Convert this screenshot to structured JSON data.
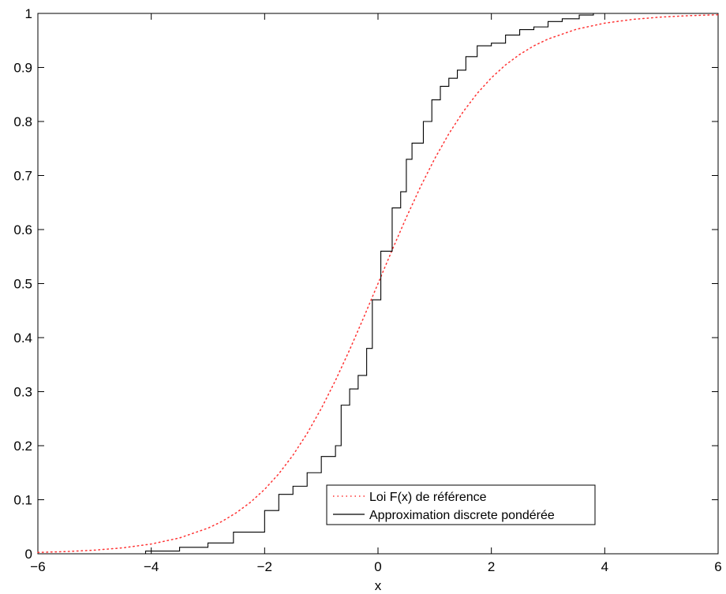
{
  "chart_data": {
    "type": "line",
    "title": "",
    "xlabel": "x",
    "ylabel": "",
    "xlim": [
      -6,
      6
    ],
    "ylim": [
      0,
      1
    ],
    "xticks": [
      -6,
      -4,
      -2,
      0,
      2,
      4,
      6
    ],
    "xtick_labels": [
      "−6",
      "−4",
      "−2",
      "0",
      "2",
      "4",
      "6"
    ],
    "yticks": [
      0,
      0.1,
      0.2,
      0.3,
      0.4,
      0.5,
      0.6,
      0.7,
      0.8,
      0.9,
      1
    ],
    "ytick_labels": [
      "0",
      "0.1",
      "0.2",
      "0.3",
      "0.4",
      "0.5",
      "0.6",
      "0.7",
      "0.8",
      "0.9",
      "1"
    ],
    "grid": false,
    "legend_position": "bottom-right",
    "series": [
      {
        "name": "Loi F(x) de référence",
        "style": "dotted",
        "color": "#ff3333",
        "x": [
          -6,
          -5.5,
          -5,
          -4.5,
          -4,
          -3.5,
          -3,
          -2.75,
          -2.5,
          -2.25,
          -2,
          -1.75,
          -1.5,
          -1.25,
          -1,
          -0.75,
          -0.5,
          -0.25,
          0,
          0.25,
          0.5,
          0.75,
          1,
          1.25,
          1.5,
          1.75,
          2,
          2.25,
          2.5,
          2.75,
          3,
          3.5,
          4,
          4.5,
          5,
          5.5,
          6
        ],
        "y": [
          0.0025,
          0.0041,
          0.0067,
          0.011,
          0.018,
          0.0293,
          0.0474,
          0.06,
          0.0759,
          0.0953,
          0.1192,
          0.148,
          0.1824,
          0.2227,
          0.2689,
          0.3208,
          0.3775,
          0.4378,
          0.5,
          0.5622,
          0.6225,
          0.6792,
          0.7311,
          0.7773,
          0.8176,
          0.852,
          0.8808,
          0.9047,
          0.9241,
          0.94,
          0.9526,
          0.9707,
          0.982,
          0.989,
          0.9933,
          0.9959,
          0.9975
        ]
      },
      {
        "name": "Approximation discrete pondérée",
        "style": "solid",
        "color": "#000000",
        "steps": [
          [
            -6,
            0
          ],
          [
            -4.1,
            0.005
          ],
          [
            -3.5,
            0.012
          ],
          [
            -3.0,
            0.02
          ],
          [
            -2.55,
            0.04
          ],
          [
            -2.0,
            0.08
          ],
          [
            -1.75,
            0.11
          ],
          [
            -1.5,
            0.125
          ],
          [
            -1.25,
            0.15
          ],
          [
            -1.0,
            0.18
          ],
          [
            -0.75,
            0.2
          ],
          [
            -0.65,
            0.275
          ],
          [
            -0.5,
            0.305
          ],
          [
            -0.35,
            0.33
          ],
          [
            -0.2,
            0.38
          ],
          [
            -0.1,
            0.47
          ],
          [
            0.05,
            0.56
          ],
          [
            0.25,
            0.64
          ],
          [
            0.4,
            0.67
          ],
          [
            0.5,
            0.73
          ],
          [
            0.6,
            0.76
          ],
          [
            0.8,
            0.8
          ],
          [
            0.95,
            0.84
          ],
          [
            1.1,
            0.865
          ],
          [
            1.25,
            0.88
          ],
          [
            1.4,
            0.895
          ],
          [
            1.55,
            0.92
          ],
          [
            1.75,
            0.94
          ],
          [
            2.0,
            0.945
          ],
          [
            2.25,
            0.96
          ],
          [
            2.5,
            0.97
          ],
          [
            2.75,
            0.975
          ],
          [
            3.0,
            0.985
          ],
          [
            3.25,
            0.99
          ],
          [
            3.55,
            0.997
          ],
          [
            3.8,
            1.0
          ],
          [
            6,
            1.0
          ]
        ]
      }
    ]
  }
}
